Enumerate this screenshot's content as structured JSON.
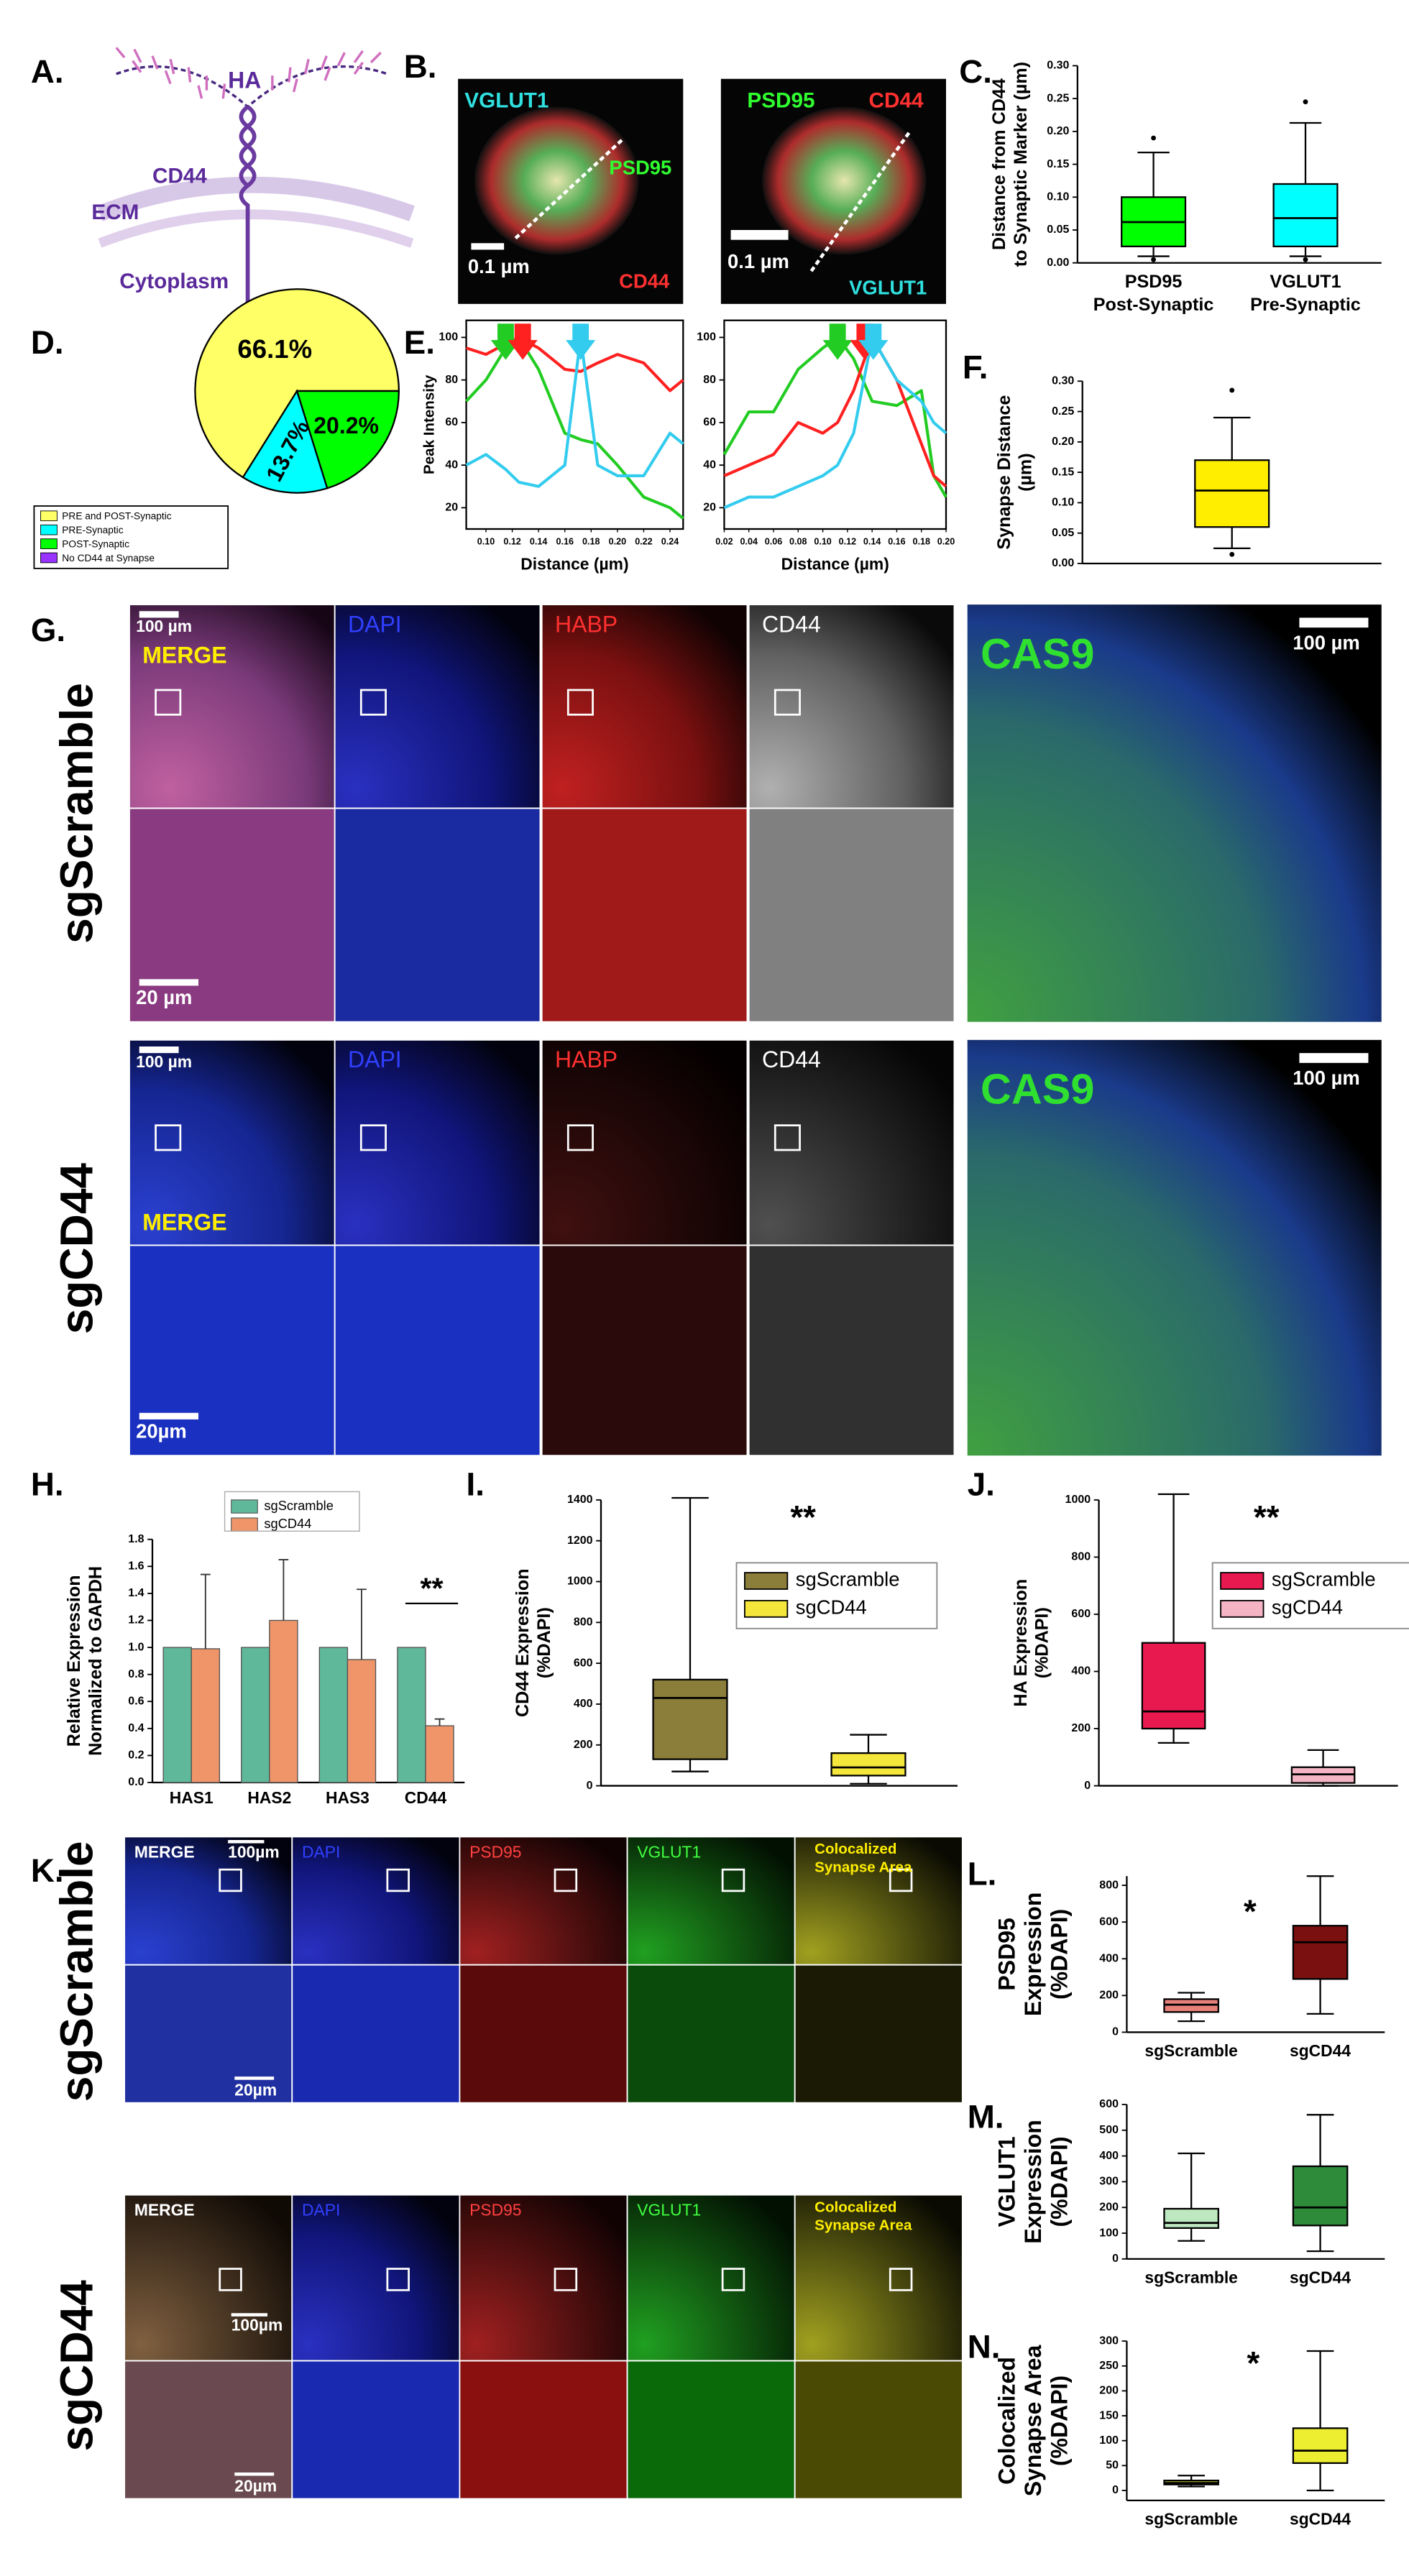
{
  "figure": {
    "panels": [
      "A.",
      "B.",
      "C.",
      "D.",
      "E.",
      "F.",
      "G.",
      "H.",
      "I.",
      "J.",
      "K.",
      "L.",
      "M.",
      "N."
    ],
    "a": {
      "ha": "HA",
      "cd44": "CD44",
      "ecm": "ECM",
      "cytoplasm": "Cytoplasm"
    },
    "b": {
      "left": {
        "vglut1": "VGLUT1",
        "psd95": "PSD95",
        "cd44": "CD44",
        "scale": "0.1 µm"
      },
      "right": {
        "psd95": "PSD95",
        "cd44": "CD44",
        "scale": "0.1 µm",
        "vglut1": "VGLUT1"
      }
    },
    "g": {
      "rows": [
        "sgScramble",
        "sgCD44"
      ],
      "channels": [
        "MERGE",
        "DAPI",
        "HABP",
        "CD44"
      ],
      "cas9": "CAS9",
      "scale_overview": "100 µm",
      "scale_zoom": [
        "20 µm",
        "20µm"
      ]
    },
    "k": {
      "rows": [
        "sgScramble",
        "sgCD44"
      ],
      "channels": [
        "MERGE",
        "DAPI",
        "PSD95",
        "VGLUT1"
      ],
      "colocalized": [
        "Colocalized",
        "Synapse Area"
      ],
      "scale_overview": "100µm",
      "scale_zoom": "20µm"
    }
  },
  "chart_data": [
    {
      "type": "box",
      "ylabel": [
        "Distance from CD44",
        "to Synaptic Marker (µm)"
      ],
      "ylim": [
        0,
        0.3
      ],
      "yticks": [
        {
          "value": 0,
          "label": "0.00"
        },
        0.05,
        {
          "value": 0.1,
          "label": "0.10"
        },
        0.15,
        {
          "value": 0.2,
          "label": "0.20"
        },
        0.25,
        {
          "value": 0.3,
          "label": "0.30"
        }
      ],
      "series": [
        {
          "name": "PSD95",
          "sublabel": "Post-Synaptic",
          "color": "#00ff00",
          "whislo": 0.01,
          "q1": 0.025,
          "med": 0.062,
          "q3": 0.1,
          "whishi": 0.168,
          "fliers": [
            0.19,
            0.005
          ]
        },
        {
          "name": "VGLUT1",
          "sublabel": "Pre-Synaptic",
          "color": "#00ffff",
          "whislo": 0.01,
          "q1": 0.025,
          "med": 0.068,
          "q3": 0.12,
          "whishi": 0.213,
          "fliers": [
            0.245,
            0.005
          ]
        }
      ]
    },
    {
      "type": "pie",
      "categories": [
        "PRE and POST-Synaptic",
        "PRE-Synaptic",
        "POST-Synaptic",
        "No CD44 at Synapse"
      ],
      "values": [
        66.1,
        13.7,
        20.2,
        0
      ],
      "value_labels": [
        "66.1%",
        "13.7%",
        "20.2%",
        null
      ],
      "colors": [
        "#ffff66",
        "#00ffff",
        "#00ff00",
        "#9933ff"
      ]
    },
    {
      "type": "line",
      "ylabel": "Peak Intensity",
      "xlabel": "Distance (µm)",
      "xlim": [
        0.085,
        0.25
      ],
      "xticks": [
        {
          "value": 0.1,
          "label": "0.10"
        },
        0.12,
        0.14,
        0.16,
        0.18,
        {
          "value": 0.2,
          "label": "0.20"
        },
        0.22,
        0.24
      ],
      "ylim": [
        10,
        108
      ],
      "yticks": [
        20,
        40,
        60,
        80,
        100
      ],
      "x": [
        0.085,
        0.1,
        0.115,
        0.125,
        0.14,
        0.16,
        0.172,
        0.185,
        0.2,
        0.22,
        0.24,
        0.25
      ],
      "series": [
        {
          "color": "#ff2020",
          "values": [
            95,
            92,
            97,
            100,
            95,
            85,
            84,
            88,
            92,
            88,
            75,
            80
          ]
        },
        {
          "color": "#22cc22",
          "values": [
            70,
            80,
            95,
            100,
            85,
            55,
            52,
            50,
            40,
            25,
            20,
            15
          ]
        },
        {
          "color": "#33ccee",
          "values": [
            40,
            45,
            38,
            32,
            30,
            40,
            100,
            40,
            35,
            35,
            55,
            50
          ]
        }
      ],
      "arrows": [
        {
          "x": 0.115,
          "color": "#22cc22"
        },
        {
          "x": 0.128,
          "color": "#ff2020"
        },
        {
          "x": 0.172,
          "color": "#33ccee"
        }
      ]
    },
    {
      "type": "line",
      "xlabel": "Distance (µm)",
      "xlim": [
        0.02,
        0.2
      ],
      "xticks": [
        0.02,
        0.04,
        0.06,
        0.08,
        {
          "value": 0.1,
          "label": "0.10"
        },
        0.12,
        0.14,
        0.16,
        0.18,
        {
          "value": 0.2,
          "label": "0.20"
        }
      ],
      "ylim": [
        10,
        108
      ],
      "yticks": [
        20,
        40,
        60,
        80,
        100
      ],
      "x": [
        0.02,
        0.04,
        0.06,
        0.08,
        0.1,
        0.112,
        0.125,
        0.14,
        0.16,
        0.18,
        0.19,
        0.2
      ],
      "series": [
        {
          "color": "#22cc22",
          "values": [
            45,
            65,
            65,
            85,
            95,
            100,
            90,
            70,
            68,
            75,
            35,
            25
          ]
        },
        {
          "color": "#ff2020",
          "values": [
            35,
            40,
            45,
            60,
            55,
            60,
            75,
            100,
            80,
            50,
            35,
            30
          ]
        },
        {
          "color": "#33ccee",
          "values": [
            20,
            25,
            25,
            30,
            35,
            40,
            55,
            100,
            80,
            70,
            60,
            55
          ]
        }
      ],
      "arrows": [
        {
          "x": 0.112,
          "color": "#22cc22"
        },
        {
          "x": 0.134,
          "color": "#ff2020"
        },
        {
          "x": 0.141,
          "color": "#33ccee"
        }
      ]
    },
    {
      "type": "box",
      "ylabel": [
        "Synapse Distance",
        "(µm)"
      ],
      "ylim": [
        0,
        0.3
      ],
      "yticks": [
        {
          "value": 0,
          "label": "0.00"
        },
        0.05,
        {
          "value": 0.1,
          "label": "0.10"
        },
        0.15,
        {
          "value": 0.2,
          "label": "0.20"
        },
        0.25,
        {
          "value": 0.3,
          "label": "0.30"
        }
      ],
      "series": [
        {
          "color": "#ffee00",
          "whislo": 0.025,
          "q1": 0.06,
          "med": 0.12,
          "q3": 0.17,
          "whishi": 0.24,
          "fliers": [
            0.285,
            0.015
          ]
        }
      ]
    },
    {
      "type": "bar",
      "ylabel": [
        "Relative Expression",
        "Normalized to GAPDH"
      ],
      "categories": [
        "HAS1",
        "HAS2",
        "HAS3",
        "CD44"
      ],
      "ylim": [
        0,
        1.8
      ],
      "yticks": [
        {
          "value": 0,
          "label": "0.0"
        },
        0.2,
        0.4,
        0.6,
        0.8,
        {
          "value": 1,
          "label": "1.0"
        },
        1.2,
        1.4,
        1.6,
        1.8
      ],
      "series": [
        {
          "name": "sgScramble",
          "color": "#5fb89a",
          "values": [
            1,
            1,
            1,
            1
          ]
        },
        {
          "name": "sgCD44",
          "color": "#f0956a",
          "values": [
            0.99,
            1.2,
            0.91,
            0.42
          ],
          "errors": [
            0.55,
            0.45,
            0.52,
            0.05
          ]
        }
      ],
      "annotation": "**"
    },
    {
      "type": "box",
      "ylabel": [
        "CD44 Expression",
        "(%DAPI)"
      ],
      "legend": true,
      "ylim": [
        0,
        1400
      ],
      "yticks": [
        0,
        200,
        400,
        600,
        800,
        1000,
        1200,
        1400
      ],
      "series": [
        {
          "name": "sgScramble",
          "color": "#8b7d3a",
          "whislo": 70,
          "q1": 130,
          "med": 430,
          "q3": 520,
          "whishi": 1410,
          "fliers": []
        },
        {
          "name": "sgCD44",
          "color": "#f5e63c",
          "whislo": 10,
          "q1": 50,
          "med": 90,
          "q3": 160,
          "whishi": 250,
          "fliers": []
        }
      ],
      "annotation": "**"
    },
    {
      "type": "box",
      "ylabel": [
        "HA Expression",
        "(%DAPI)"
      ],
      "legend": true,
      "ylim": [
        0,
        1000
      ],
      "yticks": [
        0,
        200,
        400,
        600,
        800,
        1000
      ],
      "series": [
        {
          "name": "sgScramble",
          "color": "#e8194f",
          "whislo": 150,
          "q1": 200,
          "med": 260,
          "q3": 500,
          "whishi": 1020,
          "fliers": []
        },
        {
          "name": "sgCD44",
          "color": "#f4b4c4",
          "whislo": 0,
          "q1": 10,
          "med": 40,
          "q3": 65,
          "whishi": 125,
          "fliers": []
        }
      ],
      "annotation": "**"
    },
    {
      "type": "box",
      "ylabel": [
        "PSD95",
        "Expression",
        "(%DAPI)"
      ],
      "ylim": [
        0,
        850
      ],
      "yticks": [
        0,
        200,
        400,
        600,
        800
      ],
      "series": [
        {
          "name": "sgScramble",
          "color": "#e8807a",
          "whislo": 60,
          "q1": 110,
          "med": 150,
          "q3": 180,
          "whishi": 215,
          "fliers": []
        },
        {
          "name": "sgCD44",
          "color": "#7a1010",
          "whislo": 100,
          "q1": 290,
          "med": 490,
          "q3": 580,
          "whishi": 850,
          "fliers": []
        }
      ],
      "annotation": "*"
    },
    {
      "type": "box",
      "ylabel": [
        "VGLUT1",
        "Expression",
        "(%DAPI)"
      ],
      "ylim": [
        0,
        600
      ],
      "yticks": [
        0,
        100,
        200,
        300,
        400,
        500,
        600
      ],
      "series": [
        {
          "name": "sgScramble",
          "color": "#bde8c0",
          "whislo": 70,
          "q1": 120,
          "med": 140,
          "q3": 195,
          "whishi": 410,
          "fliers": []
        },
        {
          "name": "sgCD44",
          "color": "#2e8b3a",
          "whislo": 30,
          "q1": 130,
          "med": 200,
          "q3": 360,
          "whishi": 560,
          "fliers": []
        }
      ]
    },
    {
      "type": "box",
      "ylabel": [
        "Colocalized",
        "Synapse Area",
        "(%DAPI)"
      ],
      "ylim": [
        -20,
        300
      ],
      "yticks": [
        0,
        50,
        100,
        150,
        200,
        250,
        300
      ],
      "series": [
        {
          "name": "sgScramble",
          "color": "#c8c830",
          "whislo": 8,
          "q1": 12,
          "med": 15,
          "q3": 20,
          "whishi": 30,
          "fliers": []
        },
        {
          "name": "sgCD44",
          "color": "#eeee30",
          "whislo": 0,
          "q1": 55,
          "med": 80,
          "q3": 125,
          "whishi": 280,
          "fliers": []
        }
      ],
      "annotation": "*"
    }
  ]
}
